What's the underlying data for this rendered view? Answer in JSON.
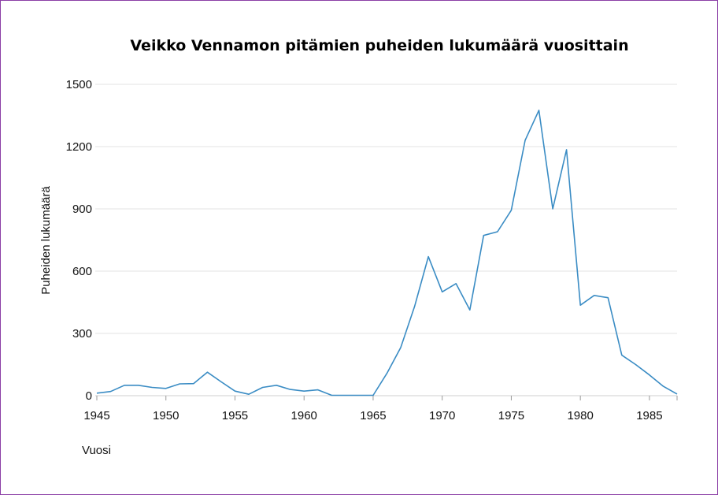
{
  "chart_data": {
    "type": "line",
    "title": "Veikko Vennamon pitämien puheiden lukumäärä vuosittain",
    "xlabel": "Vuosi",
    "ylabel": "Puheiden lukumäärä",
    "xlim": [
      1945,
      1987
    ],
    "ylim": [
      0,
      1500
    ],
    "x_ticks": [
      1945,
      1950,
      1955,
      1960,
      1965,
      1970,
      1975,
      1980,
      1985
    ],
    "y_ticks": [
      0,
      300,
      600,
      900,
      1200,
      1500
    ],
    "grid": true,
    "color": "#3a8cc4",
    "x": [
      1945,
      1946,
      1947,
      1948,
      1949,
      1950,
      1951,
      1952,
      1953,
      1954,
      1955,
      1956,
      1957,
      1958,
      1959,
      1960,
      1961,
      1962,
      1963,
      1964,
      1965,
      1966,
      1967,
      1968,
      1969,
      1970,
      1971,
      1972,
      1973,
      1974,
      1975,
      1976,
      1977,
      1978,
      1979,
      1980,
      1981,
      1982,
      1983,
      1984,
      1985,
      1986,
      1987
    ],
    "values": [
      12,
      20,
      50,
      50,
      40,
      35,
      57,
      58,
      113,
      67,
      22,
      7,
      40,
      50,
      30,
      22,
      28,
      2,
      2,
      2,
      2,
      108,
      232,
      430,
      670,
      500,
      540,
      413,
      772,
      790,
      893,
      1230,
      1375,
      900,
      1185,
      436,
      483,
      472,
      195,
      150,
      100,
      45,
      8
    ]
  }
}
